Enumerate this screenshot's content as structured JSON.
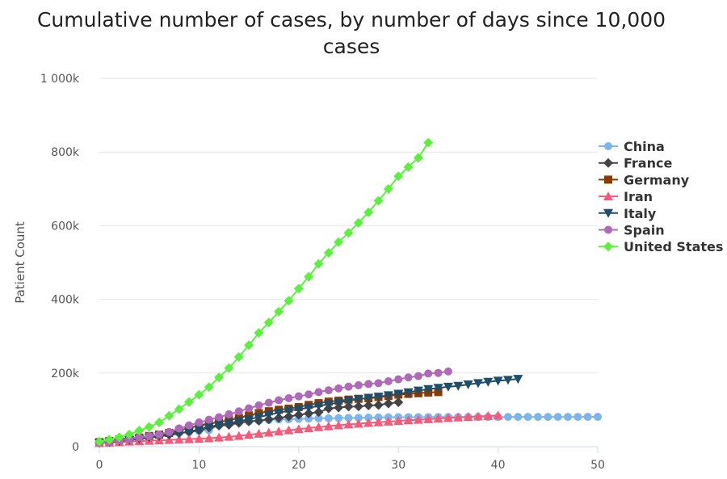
{
  "chart_data": {
    "type": "line",
    "title_line1": "Cumulative number of cases, by number of days since 10,000",
    "title_line2": "cases",
    "xlabel": "",
    "ylabel": "Patient Count",
    "xlim": [
      0,
      50
    ],
    "ylim": [
      0,
      1000000
    ],
    "x_ticks": [
      0,
      10,
      20,
      30,
      40,
      50
    ],
    "y_ticks": [
      {
        "value": 0,
        "label": "0"
      },
      {
        "value": 200000,
        "label": "200k"
      },
      {
        "value": 400000,
        "label": "400k"
      },
      {
        "value": 600000,
        "label": "600k"
      },
      {
        "value": 800000,
        "label": "800k"
      },
      {
        "value": 1000000,
        "label": "1 000k"
      }
    ],
    "grid": true,
    "legend_position": "right",
    "series": [
      {
        "name": "China",
        "color": "#7cb5ec",
        "marker": "circle",
        "values": [
          11791,
          14380,
          17205,
          20438,
          24324,
          28018,
          31161,
          34546,
          37198,
          40171,
          42638,
          44653,
          58761,
          63851,
          66492,
          68500,
          70548,
          72436,
          74185,
          74576,
          75465,
          76288,
          76936,
          77150,
          77658,
          78064,
          78497,
          78824,
          79251,
          79824,
          80026,
          80151,
          80270,
          80409,
          80552,
          80651,
          80695,
          80735,
          80754,
          80778,
          80793,
          80813,
          80824,
          80844,
          80860,
          80881,
          80894,
          80928,
          80967,
          81008,
          81054
        ]
      },
      {
        "name": "France",
        "color": "#434348",
        "marker": "diamond",
        "values": [
          12612,
          14459,
          16689,
          19856,
          22304,
          25233,
          29155,
          32964,
          37575,
          40174,
          44550,
          52128,
          56989,
          59105,
          64338,
          68605,
          70478,
          74390,
          78167,
          82048,
          86334,
          90276,
          93790,
          103573,
          106206,
          108847,
          109252,
          111821,
          112950,
          117324,
          120633
        ]
      },
      {
        "name": "Germany",
        "color": "#8b3a00",
        "marker": "square",
        "values": [
          12327,
          15320,
          19848,
          22213,
          24873,
          29056,
          32986,
          37323,
          43938,
          50871,
          57695,
          62095,
          66885,
          71808,
          77872,
          84794,
          91159,
          96092,
          100123,
          103374,
          107663,
          113296,
          118181,
          122171,
          124908,
          127854,
          130072,
          131359,
          134753,
          137698,
          141397,
          143342,
          145184,
          147065,
          148291
        ]
      },
      {
        "name": "Iran",
        "color": "#f45b7a",
        "marker": "triangle",
        "values": [
          10075,
          11364,
          12729,
          13938,
          14991,
          16169,
          17361,
          18407,
          19644,
          20610,
          21638,
          23049,
          24811,
          27017,
          29406,
          32332,
          35408,
          38309,
          41495,
          44605,
          47593,
          50468,
          53183,
          55743,
          58226,
          60500,
          62589,
          64586,
          66220,
          68192,
          70029,
          71686,
          73303,
          74877,
          76389,
          77995,
          79494,
          80868,
          82211,
          83505,
          84802
        ]
      },
      {
        "name": "Italy",
        "color": "#1f4e6b",
        "marker": "triangle-down",
        "values": [
          10149,
          12462,
          15113,
          17660,
          21157,
          24747,
          27980,
          31506,
          35713,
          41035,
          47021,
          53578,
          59138,
          63927,
          69176,
          74386,
          80589,
          86498,
          92472,
          97689,
          101739,
          105792,
          110574,
          115242,
          119827,
          124632,
          128948,
          132547,
          135586,
          139422,
          143626,
          147577,
          152271,
          156363,
          159516,
          162488,
          165155,
          168941,
          172434,
          175925,
          178972,
          181228,
          183957
        ]
      },
      {
        "name": "Spain",
        "color": "#b069b8",
        "marker": "circle",
        "values": [
          11178,
          13716,
          17147,
          19980,
          24926,
          28572,
          33089,
          39885,
          49515,
          57786,
          65719,
          73235,
          80110,
          87956,
          95923,
          104118,
          112065,
          119199,
          126168,
          131646,
          136675,
          141942,
          148220,
          153222,
          158273,
          163027,
          166831,
          170099,
          172541,
          177633,
          182816,
          188068,
          191726,
          198674,
          200210,
          204178
        ]
      },
      {
        "name": "United States",
        "color": "#5cf03e",
        "marker": "diamond",
        "values": [
          13747,
          19273,
          25600,
          33276,
          43843,
          53740,
          65778,
          83836,
          101657,
          121478,
          140886,
          161807,
          188172,
          213372,
          243616,
          275586,
          308850,
          337072,
          366614,
          396223,
          429052,
          461437,
          496535,
          526396,
          555313,
          580619,
          607670,
          636350,
          667801,
          699706,
          734073,
          759086,
          784326,
          825306
        ]
      }
    ]
  }
}
